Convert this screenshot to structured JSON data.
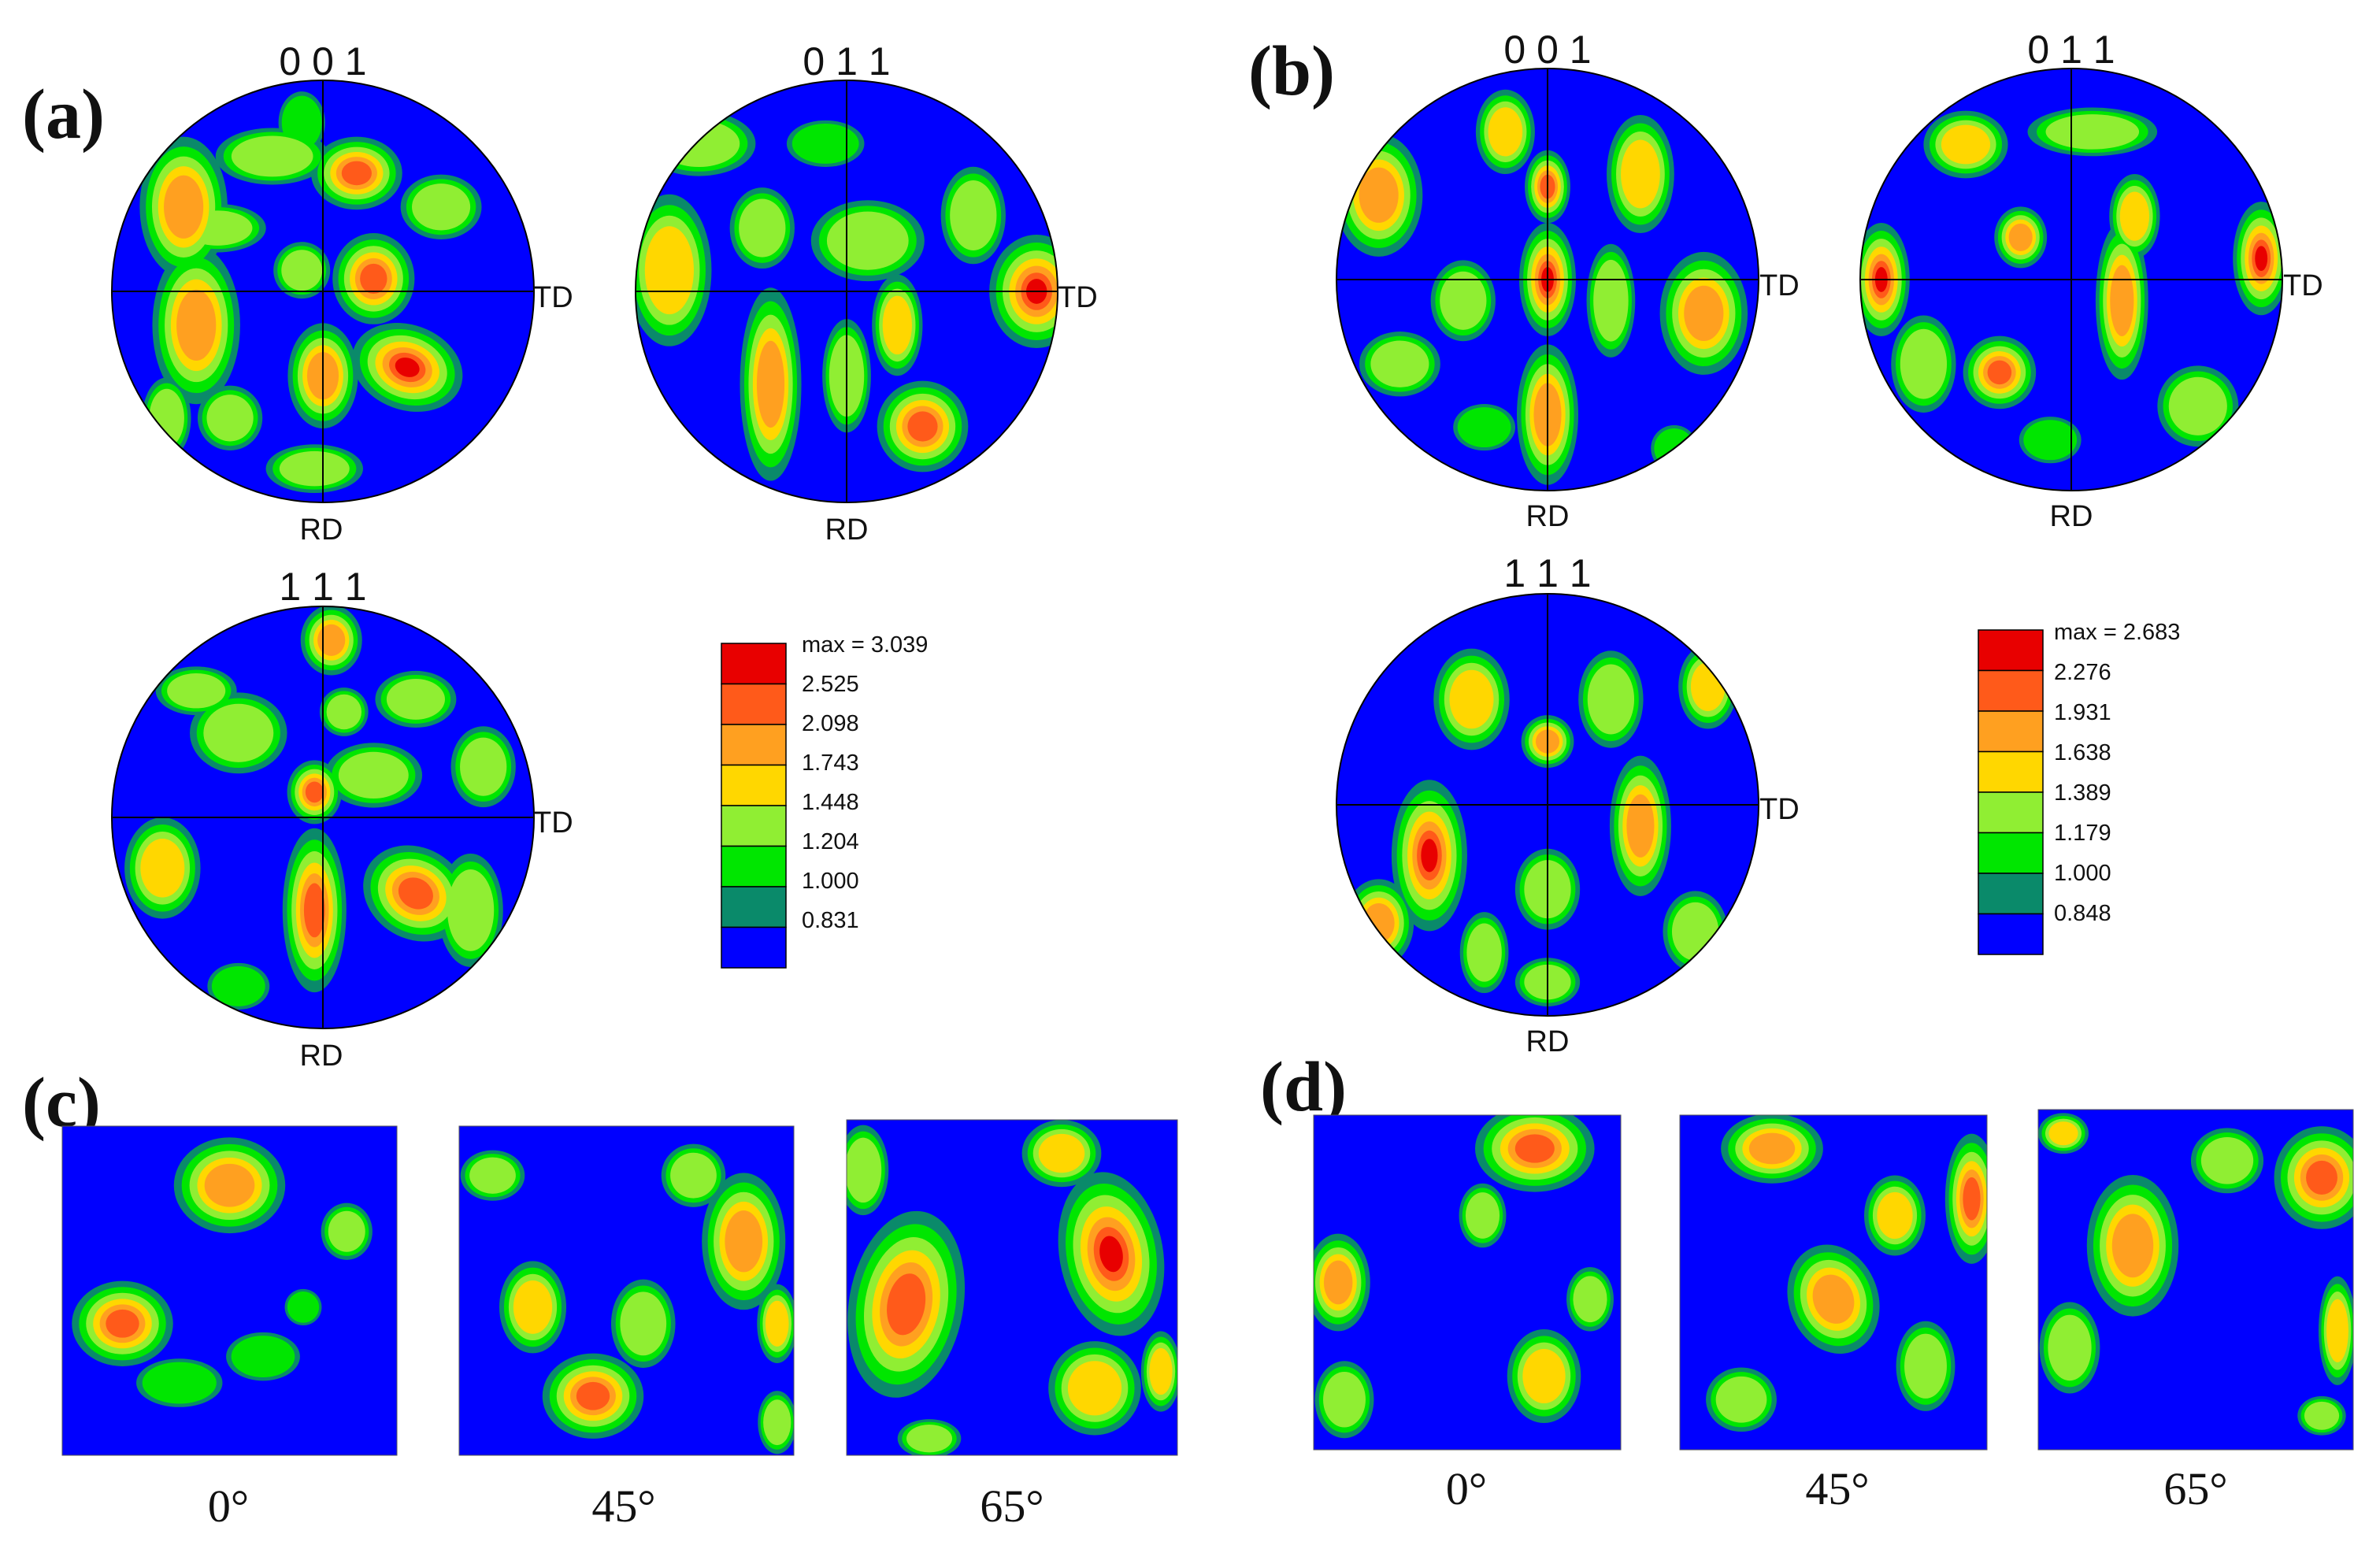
{
  "chart_data": {
    "type": "heatmap",
    "colors": [
      "#0000ff",
      "#0a8a6a",
      "#00e600",
      "#90ee33",
      "#ffd700",
      "#ffa020",
      "#ff5a1a",
      "#e80000"
    ],
    "panels": [
      {
        "label": "(a)",
        "pole_figures": [
          {
            "title": "0 0 1",
            "x_label": "TD",
            "y_label": "RD"
          },
          {
            "title": "0 1 1",
            "x_label": "TD",
            "y_label": "RD"
          },
          {
            "title": "1 1 1",
            "x_label": "TD",
            "y_label": "RD"
          }
        ],
        "legend": {
          "max_label": "max = 3.039",
          "levels": [
            "2.525",
            "2.098",
            "1.743",
            "1.448",
            "1.204",
            "1.000",
            "0.831"
          ]
        }
      },
      {
        "label": "(b)",
        "pole_figures": [
          {
            "title": "0 0 1",
            "x_label": "TD",
            "y_label": "RD"
          },
          {
            "title": "0 1 1",
            "x_label": "TD",
            "y_label": "RD"
          },
          {
            "title": "1 1 1",
            "x_label": "TD",
            "y_label": "RD"
          }
        ],
        "legend": {
          "max_label": "max = 2.683",
          "levels": [
            "2.276",
            "1.931",
            "1.638",
            "1.389",
            "1.179",
            "1.000",
            "0.848"
          ]
        }
      },
      {
        "label": "(c)",
        "sections": [
          "0°",
          "45°",
          "65°"
        ]
      },
      {
        "label": "(d)",
        "sections": [
          "0°",
          "45°",
          "65°"
        ]
      }
    ]
  }
}
